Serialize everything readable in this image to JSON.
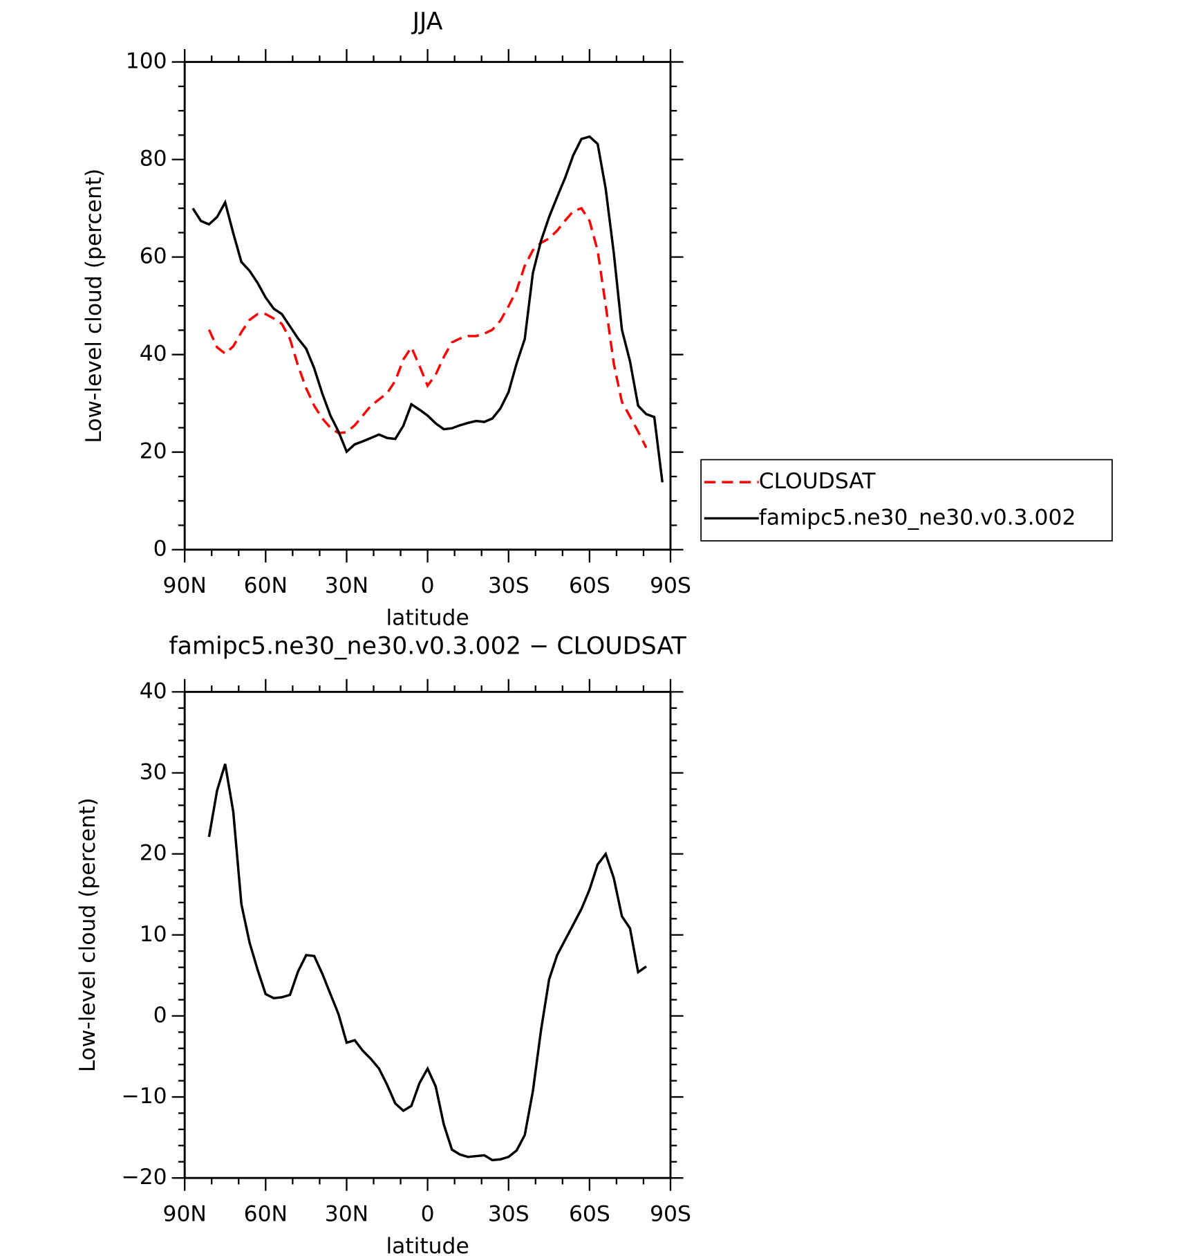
{
  "chart_data": [
    {
      "type": "line",
      "title": "JJA",
      "xlabel": "latitude",
      "ylabel": "Low-level cloud (percent)",
      "x": [
        87,
        84,
        81,
        78,
        75,
        72,
        69,
        66,
        63,
        60,
        57,
        54,
        51,
        48,
        45,
        42,
        39,
        36,
        33,
        30,
        27,
        24,
        21,
        18,
        15,
        12,
        9,
        6,
        3,
        0,
        -3,
        -6,
        -9,
        -12,
        -15,
        -18,
        -21,
        -24,
        -27,
        -30,
        -33,
        -36,
        -39,
        -42,
        -45,
        -48,
        -51,
        -54,
        -57,
        -60,
        -63,
        -66,
        -69,
        -72,
        -75,
        -78,
        -81,
        -84,
        -87
      ],
      "xlim": [
        90,
        -90
      ],
      "xticks": [
        {
          "value": 90,
          "label": "90N"
        },
        {
          "value": 60,
          "label": "60N"
        },
        {
          "value": 30,
          "label": "30N"
        },
        0,
        {
          "value": -30,
          "label": "30S"
        },
        {
          "value": -60,
          "label": "60S"
        },
        {
          "value": -90,
          "label": "90S"
        }
      ],
      "ylim": [
        0,
        100
      ],
      "yticks": [
        0,
        20,
        40,
        60,
        80,
        100
      ],
      "legend": "right",
      "series": [
        {
          "name": "CLOUDSAT",
          "color": "#ff0000",
          "linestyle": "dashed",
          "values": [
            null,
            null,
            45.1,
            41.5,
            40.2,
            41.7,
            44.6,
            47.1,
            48.3,
            48.3,
            47.4,
            46.3,
            43.2,
            37.7,
            33.1,
            29.5,
            26.9,
            25.0,
            23.9,
            24.1,
            25.5,
            27.5,
            29.5,
            30.8,
            32.1,
            34.6,
            39.0,
            41.5,
            37.7,
            33.6,
            35.9,
            39.5,
            42.5,
            43.3,
            43.8,
            43.8,
            44.3,
            45.1,
            47.0,
            49.9,
            53.2,
            58.2,
            61.4,
            62.9,
            63.8,
            65.4,
            67.5,
            69.4,
            70.0,
            67.4,
            61.3,
            50.1,
            38.1,
            30.3,
            27.3,
            24.2,
            20.9,
            null,
            null
          ]
        },
        {
          "name": "famipc5.ne30_ne30.v0.3.002",
          "color": "#000000",
          "linestyle": "solid",
          "values": [
            70.0,
            67.4,
            66.7,
            68.2,
            71.2,
            64.9,
            59.0,
            57.2,
            54.7,
            51.7,
            49.4,
            48.3,
            45.8,
            43.3,
            41.2,
            37.2,
            32.0,
            27.5,
            24.2,
            20.1,
            21.6,
            22.2,
            22.9,
            23.6,
            22.9,
            22.7,
            25.4,
            29.8,
            28.7,
            27.5,
            25.9,
            24.7,
            24.9,
            25.5,
            26.0,
            26.4,
            26.2,
            26.9,
            29.0,
            32.3,
            38.2,
            43.2,
            56.7,
            63.3,
            68.2,
            72.3,
            76.3,
            80.9,
            84.2,
            84.7,
            83.2,
            74.0,
            60.8,
            45.1,
            38.6,
            29.5,
            27.8,
            27.2,
            13.8
          ]
        }
      ]
    },
    {
      "type": "line",
      "title": "famipc5.ne30_ne30.v0.3.002 − CLOUDSAT",
      "xlabel": "latitude",
      "ylabel": "Low-level cloud (percent)",
      "x": [
        87,
        84,
        81,
        78,
        75,
        72,
        69,
        66,
        63,
        60,
        57,
        54,
        51,
        48,
        45,
        42,
        39,
        36,
        33,
        30,
        27,
        24,
        21,
        18,
        15,
        12,
        9,
        6,
        3,
        0,
        -3,
        -6,
        -9,
        -12,
        -15,
        -18,
        -21,
        -24,
        -27,
        -30,
        -33,
        -36,
        -39,
        -42,
        -45,
        -48,
        -51,
        -54,
        -57,
        -60,
        -63,
        -66,
        -69,
        -72,
        -75,
        -78,
        -81,
        -84,
        -87
      ],
      "xlim": [
        90,
        -90
      ],
      "xticks": [
        {
          "value": 90,
          "label": "90N"
        },
        {
          "value": 60,
          "label": "60N"
        },
        {
          "value": 30,
          "label": "30N"
        },
        0,
        {
          "value": -30,
          "label": "30S"
        },
        {
          "value": -60,
          "label": "60S"
        },
        {
          "value": -90,
          "label": "90S"
        }
      ],
      "ylim": [
        -20,
        40
      ],
      "yticks": [
        {
          "value": -20,
          "label": "−20"
        },
        {
          "value": -10,
          "label": "−10"
        },
        0,
        10,
        20,
        30,
        40
      ],
      "series": [
        {
          "color": "#000000",
          "linestyle": "solid",
          "values": [
            null,
            null,
            22.1,
            27.8,
            31.1,
            25.2,
            13.8,
            9.1,
            5.7,
            2.7,
            2.2,
            2.3,
            2.6,
            5.5,
            7.5,
            7.4,
            5.2,
            2.7,
            0.2,
            -3.3,
            -3.0,
            -4.3,
            -5.3,
            -6.5,
            -8.5,
            -10.8,
            -11.7,
            -11.1,
            -8.3,
            -6.5,
            -8.7,
            -13.4,
            -16.5,
            -17.1,
            -17.4,
            -17.3,
            -17.2,
            -17.8,
            -17.7,
            -17.4,
            -16.6,
            -14.7,
            -9.3,
            -1.8,
            4.5,
            7.5,
            9.4,
            11.3,
            13.2,
            15.6,
            18.7,
            20.0,
            17.0,
            12.3,
            10.8,
            5.4,
            6.1,
            null,
            null
          ]
        }
      ]
    }
  ]
}
